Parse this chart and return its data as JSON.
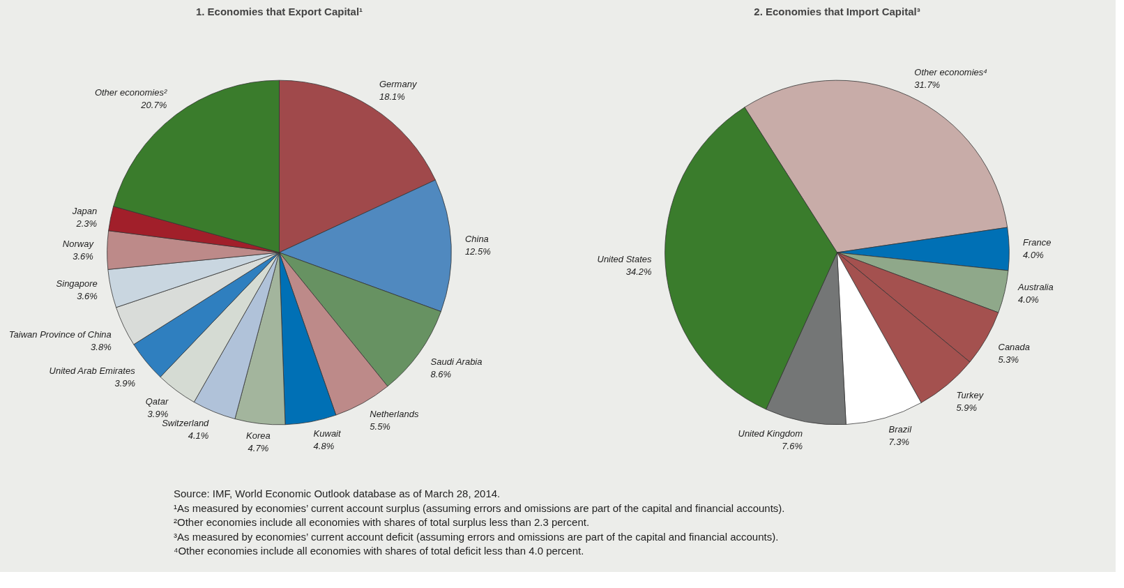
{
  "chart_data": [
    {
      "type": "pie",
      "title": "1. Economies that Export Capital¹",
      "categories": [
        "Germany",
        "China",
        "Saudi Arabia",
        "Netherlands",
        "Kuwait",
        "Korea",
        "Switzerland",
        "Qatar",
        "United Arab Emirates",
        "Taiwan Province of China",
        "Singapore",
        "Norway",
        "Japan",
        "Other economies²"
      ],
      "values": [
        18.1,
        12.5,
        8.6,
        5.5,
        4.8,
        4.7,
        4.1,
        3.9,
        3.9,
        3.8,
        3.6,
        3.6,
        2.3,
        20.7
      ],
      "colors": [
        "#a0494b",
        "#5089bf",
        "#679262",
        "#bd8a89",
        "#0070b5",
        "#a3b59d",
        "#b0c2d9",
        "#d5dbd3",
        "#2f7fbf",
        "#d9dcd9",
        "#c9d6e0",
        "#bd8a89",
        "#a11f2a",
        "#3a7c2c"
      ],
      "value_labels": [
        "18.1%",
        "12.5%",
        "8.6%",
        "5.5%",
        "4.8%",
        "4.7%",
        "4.1%",
        "3.9%",
        "3.9%",
        "3.8%",
        "3.6%",
        "3.6%",
        "2.3%",
        "20.7%"
      ]
    },
    {
      "type": "pie",
      "title": "2. Economies that Import Capital³",
      "categories": [
        "Other economies⁴",
        "France",
        "Australia",
        "Canada",
        "Turkey",
        "Brazil",
        "United Kingdom",
        "United States"
      ],
      "values": [
        31.7,
        4.0,
        4.0,
        5.3,
        5.9,
        7.3,
        7.6,
        34.2
      ],
      "colors": [
        "#c8aca8",
        "#0070b5",
        "#8fa88a",
        "#a4514f",
        "#a4514f",
        "#ffffff",
        "#747676",
        "#3a7c2c"
      ],
      "value_labels": [
        "31.7%",
        "4.0%",
        "4.0%",
        "5.3%",
        "5.9%",
        "7.3%",
        "7.6%",
        "34.2%"
      ],
      "annotations": [
        "Source: IMF, World Economic Outlook database as of March 28, 2014.",
        "¹As measured by economies’ current account surplus (assuming errors and omissions are part of the capital and financial accounts).",
        "²Other economies include all economies with shares of total surplus less than 2.3 percent.",
        "³As measured by economies’ current account deficit (assuming errors and omissions are part of the capital and financial accounts).",
        "⁴Other economies include all economies with shares of total deficit less than 4.0 percent."
      ]
    }
  ]
}
